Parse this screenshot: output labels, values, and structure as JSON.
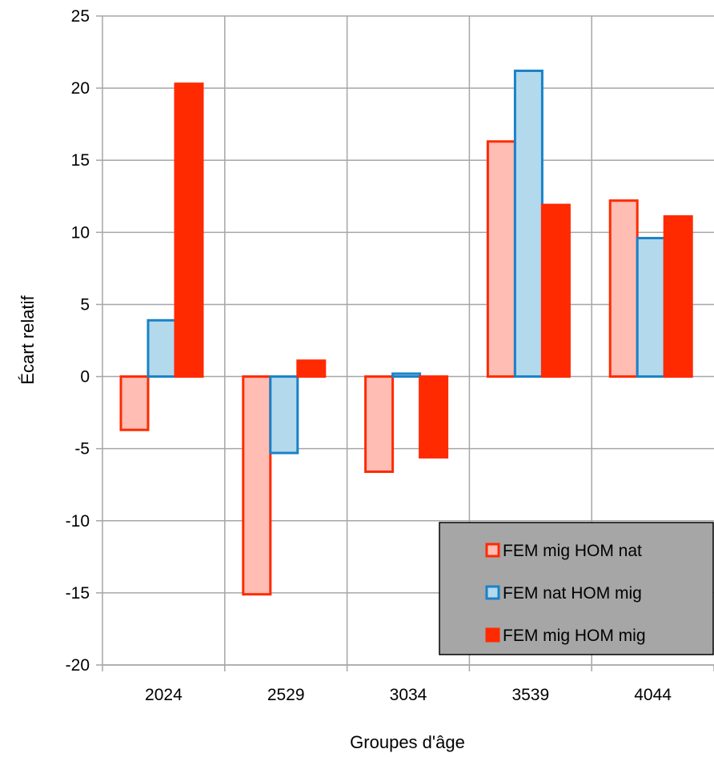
{
  "chart_data": {
    "type": "bar",
    "title": "",
    "xlabel": "Groupes d'âge",
    "ylabel": "Écart relatif",
    "categories": [
      "2024",
      "2529",
      "3034",
      "3539",
      "4044"
    ],
    "ylim": [
      -20,
      25
    ],
    "yticks": [
      25,
      20,
      15,
      10,
      5,
      0,
      -5,
      -10,
      -15,
      -20
    ],
    "grid": true,
    "legend_position": "bottom-right",
    "series": [
      {
        "name": "FEM mig HOM nat",
        "values": [
          -3.7,
          -15.1,
          -6.6,
          16.3,
          12.2
        ],
        "fill": "#ffbdb3",
        "stroke": "#ff2a00"
      },
      {
        "name": "FEM nat HOM mig",
        "values": [
          3.9,
          -5.3,
          0.2,
          21.2,
          9.6
        ],
        "fill": "#b3d9ec",
        "stroke": "#1a82c8"
      },
      {
        "name": "FEM mig HOM mig",
        "values": [
          20.3,
          1.1,
          -5.6,
          11.9,
          11.1
        ],
        "fill": "#ff2a00",
        "stroke": "#ff2a00"
      }
    ]
  }
}
